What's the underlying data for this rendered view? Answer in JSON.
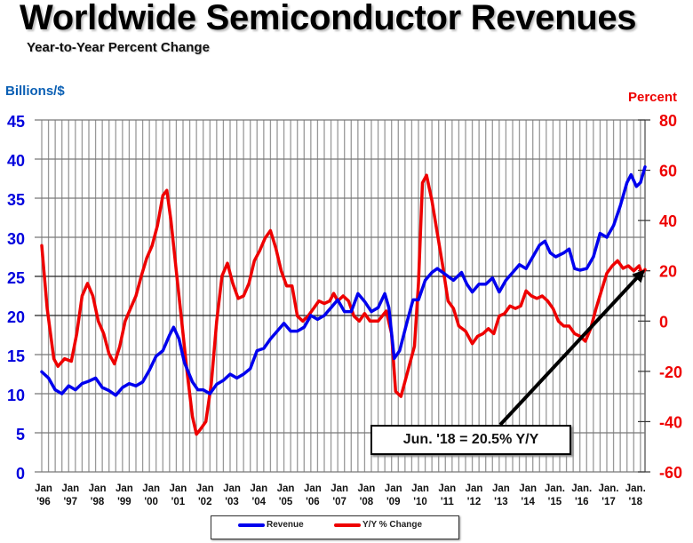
{
  "chart_data": {
    "type": "line",
    "title": "Worldwide Semiconductor Revenues",
    "subtitle": "Year-to-Year Percent Change",
    "ylabel_left": "Billions/$",
    "ylabel_right": "Percent",
    "ylim_left": [
      0,
      45
    ],
    "ylim_right": [
      -60,
      80
    ],
    "yticks_left": [
      "45",
      "40",
      "35",
      "30",
      "25",
      "20",
      "15",
      "10",
      "5",
      "0"
    ],
    "yticks_right": [
      "80",
      "60",
      "40",
      "20",
      "0",
      "-20",
      "-40",
      "-60"
    ],
    "xlim": [
      1996.0,
      2018.42
    ],
    "xticks": [
      {
        "l1": "Jan",
        "l2": "'96"
      },
      {
        "l1": "Jan",
        "l2": "'97"
      },
      {
        "l1": "Jan",
        "l2": "'98"
      },
      {
        "l1": "Jan",
        "l2": "'99"
      },
      {
        "l1": "Jan",
        "l2": "'00"
      },
      {
        "l1": "Jan",
        "l2": "'01"
      },
      {
        "l1": "Jan",
        "l2": "'02"
      },
      {
        "l1": "Jan",
        "l2": "'03"
      },
      {
        "l1": "Jan",
        "l2": "'04"
      },
      {
        "l1": "Jan",
        "l2": "'05"
      },
      {
        "l1": "Jan",
        "l2": "'06"
      },
      {
        "l1": "Jan",
        "l2": "'07"
      },
      {
        "l1": "Jan",
        "l2": "'08"
      },
      {
        "l1": "Jan",
        "l2": "'09"
      },
      {
        "l1": "Jan",
        "l2": "'10"
      },
      {
        "l1": "Jan",
        "l2": "'11"
      },
      {
        "l1": "Jan",
        "l2": "'12"
      },
      {
        "l1": "Jan",
        "l2": "'13"
      },
      {
        "l1": "Jan",
        "l2": "'14"
      },
      {
        "l1": "Jan.",
        "l2": "'15"
      },
      {
        "l1": "Jan.",
        "l2": "'16"
      },
      {
        "l1": "Jan.",
        "l2": "'17"
      },
      {
        "l1": "Jan.",
        "l2": "'18"
      }
    ],
    "grid": true,
    "legend_position": "bottom",
    "series": [
      {
        "name": "Revenue",
        "axis": "left",
        "color": "#0000ee",
        "points": [
          [
            1996.0,
            12.8
          ],
          [
            1996.25,
            12.0
          ],
          [
            1996.5,
            10.5
          ],
          [
            1996.75,
            10.0
          ],
          [
            1997.0,
            11.0
          ],
          [
            1997.25,
            10.5
          ],
          [
            1997.5,
            11.3
          ],
          [
            1997.75,
            11.6
          ],
          [
            1998.0,
            12.0
          ],
          [
            1998.25,
            10.8
          ],
          [
            1998.5,
            10.4
          ],
          [
            1998.75,
            9.8
          ],
          [
            1999.0,
            10.8
          ],
          [
            1999.25,
            11.3
          ],
          [
            1999.5,
            11.0
          ],
          [
            1999.75,
            11.5
          ],
          [
            2000.0,
            13.0
          ],
          [
            2000.25,
            14.8
          ],
          [
            2000.5,
            15.5
          ],
          [
            2000.75,
            17.5
          ],
          [
            2000.9,
            18.5
          ],
          [
            2001.1,
            17.0
          ],
          [
            2001.3,
            14.0
          ],
          [
            2001.6,
            11.5
          ],
          [
            2001.8,
            10.5
          ],
          [
            2002.0,
            10.5
          ],
          [
            2002.25,
            10.0
          ],
          [
            2002.5,
            11.2
          ],
          [
            2002.75,
            11.7
          ],
          [
            2003.0,
            12.5
          ],
          [
            2003.25,
            12.0
          ],
          [
            2003.5,
            12.5
          ],
          [
            2003.75,
            13.2
          ],
          [
            2004.0,
            15.5
          ],
          [
            2004.25,
            15.8
          ],
          [
            2004.5,
            17.0
          ],
          [
            2004.75,
            18.0
          ],
          [
            2005.0,
            19.0
          ],
          [
            2005.25,
            18.0
          ],
          [
            2005.5,
            18.0
          ],
          [
            2005.75,
            18.5
          ],
          [
            2006.0,
            20.0
          ],
          [
            2006.25,
            19.5
          ],
          [
            2006.5,
            20.0
          ],
          [
            2006.75,
            21.0
          ],
          [
            2007.0,
            22.0
          ],
          [
            2007.25,
            20.5
          ],
          [
            2007.5,
            20.5
          ],
          [
            2007.75,
            22.8
          ],
          [
            2008.0,
            21.8
          ],
          [
            2008.25,
            20.5
          ],
          [
            2008.5,
            21.0
          ],
          [
            2008.75,
            22.8
          ],
          [
            2008.9,
            21.0
          ],
          [
            2009.1,
            14.5
          ],
          [
            2009.3,
            15.5
          ],
          [
            2009.6,
            19.5
          ],
          [
            2009.8,
            22.0
          ],
          [
            2010.0,
            22.0
          ],
          [
            2010.25,
            24.5
          ],
          [
            2010.5,
            25.5
          ],
          [
            2010.7,
            26.0
          ],
          [
            2010.9,
            25.5
          ],
          [
            2011.1,
            25.0
          ],
          [
            2011.3,
            24.5
          ],
          [
            2011.6,
            25.5
          ],
          [
            2011.8,
            24.0
          ],
          [
            2012.0,
            23.0
          ],
          [
            2012.25,
            24.0
          ],
          [
            2012.5,
            24.0
          ],
          [
            2012.75,
            24.8
          ],
          [
            2013.0,
            23.0
          ],
          [
            2013.25,
            24.5
          ],
          [
            2013.5,
            25.5
          ],
          [
            2013.75,
            26.5
          ],
          [
            2014.0,
            26.0
          ],
          [
            2014.25,
            27.5
          ],
          [
            2014.5,
            29.0
          ],
          [
            2014.7,
            29.5
          ],
          [
            2014.9,
            28.0
          ],
          [
            2015.1,
            27.5
          ],
          [
            2015.4,
            28.0
          ],
          [
            2015.6,
            28.5
          ],
          [
            2015.8,
            26.0
          ],
          [
            2016.0,
            25.8
          ],
          [
            2016.25,
            26.0
          ],
          [
            2016.5,
            27.5
          ],
          [
            2016.75,
            30.5
          ],
          [
            2017.0,
            30.0
          ],
          [
            2017.25,
            31.5
          ],
          [
            2017.5,
            34.0
          ],
          [
            2017.75,
            37.0
          ],
          [
            2017.9,
            38.0
          ],
          [
            2018.1,
            36.5
          ],
          [
            2018.25,
            37.0
          ],
          [
            2018.42,
            39.0
          ]
        ]
      },
      {
        "name": "Y/Y % Change",
        "axis": "right",
        "color": "#ee0000",
        "points": [
          [
            1996.0,
            30
          ],
          [
            1996.2,
            5
          ],
          [
            1996.45,
            -15
          ],
          [
            1996.6,
            -18
          ],
          [
            1996.85,
            -15
          ],
          [
            1997.1,
            -16
          ],
          [
            1997.3,
            -5
          ],
          [
            1997.5,
            10
          ],
          [
            1997.7,
            15
          ],
          [
            1997.9,
            10
          ],
          [
            1998.1,
            0
          ],
          [
            1998.3,
            -5
          ],
          [
            1998.5,
            -13
          ],
          [
            1998.7,
            -17
          ],
          [
            1998.9,
            -10
          ],
          [
            1999.1,
            0
          ],
          [
            1999.3,
            5
          ],
          [
            1999.5,
            10
          ],
          [
            1999.7,
            18
          ],
          [
            1999.9,
            25
          ],
          [
            2000.1,
            30
          ],
          [
            2000.3,
            38
          ],
          [
            2000.5,
            50
          ],
          [
            2000.65,
            52
          ],
          [
            2000.8,
            40
          ],
          [
            2001.0,
            20
          ],
          [
            2001.2,
            0
          ],
          [
            2001.4,
            -20
          ],
          [
            2001.6,
            -38
          ],
          [
            2001.75,
            -45
          ],
          [
            2001.9,
            -43
          ],
          [
            2002.1,
            -40
          ],
          [
            2002.3,
            -25
          ],
          [
            2002.5,
            0
          ],
          [
            2002.7,
            18
          ],
          [
            2002.9,
            23
          ],
          [
            2003.1,
            15
          ],
          [
            2003.3,
            9
          ],
          [
            2003.5,
            10
          ],
          [
            2003.7,
            15
          ],
          [
            2003.9,
            24
          ],
          [
            2004.1,
            28
          ],
          [
            2004.3,
            33
          ],
          [
            2004.5,
            36
          ],
          [
            2004.7,
            29
          ],
          [
            2004.9,
            20
          ],
          [
            2005.1,
            14
          ],
          [
            2005.3,
            14
          ],
          [
            2005.5,
            2
          ],
          [
            2005.7,
            0
          ],
          [
            2005.9,
            2
          ],
          [
            2006.1,
            5
          ],
          [
            2006.3,
            8
          ],
          [
            2006.5,
            7
          ],
          [
            2006.7,
            8
          ],
          [
            2006.85,
            11
          ],
          [
            2007.0,
            8
          ],
          [
            2007.2,
            10
          ],
          [
            2007.4,
            8
          ],
          [
            2007.6,
            2
          ],
          [
            2007.8,
            0
          ],
          [
            2008.0,
            3
          ],
          [
            2008.2,
            0
          ],
          [
            2008.5,
            0
          ],
          [
            2008.8,
            4
          ],
          [
            2009.0,
            -5
          ],
          [
            2009.15,
            -28
          ],
          [
            2009.35,
            -30
          ],
          [
            2009.6,
            -20
          ],
          [
            2009.85,
            -10
          ],
          [
            2010.0,
            15
          ],
          [
            2010.15,
            55
          ],
          [
            2010.3,
            58
          ],
          [
            2010.5,
            48
          ],
          [
            2010.7,
            35
          ],
          [
            2010.9,
            22
          ],
          [
            2011.1,
            8
          ],
          [
            2011.3,
            5
          ],
          [
            2011.5,
            -2
          ],
          [
            2011.75,
            -4
          ],
          [
            2012.0,
            -9
          ],
          [
            2012.2,
            -6
          ],
          [
            2012.4,
            -5
          ],
          [
            2012.6,
            -3
          ],
          [
            2012.8,
            -5
          ],
          [
            2013.0,
            2
          ],
          [
            2013.2,
            3
          ],
          [
            2013.4,
            6
          ],
          [
            2013.6,
            5
          ],
          [
            2013.8,
            6
          ],
          [
            2014.0,
            12
          ],
          [
            2014.2,
            10
          ],
          [
            2014.4,
            9
          ],
          [
            2014.6,
            10
          ],
          [
            2014.8,
            8
          ],
          [
            2015.0,
            5
          ],
          [
            2015.2,
            0
          ],
          [
            2015.4,
            -2
          ],
          [
            2015.6,
            -2
          ],
          [
            2015.8,
            -5
          ],
          [
            2016.0,
            -6
          ],
          [
            2016.2,
            -8
          ],
          [
            2016.4,
            -3
          ],
          [
            2016.6,
            5
          ],
          [
            2016.8,
            12
          ],
          [
            2017.0,
            19
          ],
          [
            2017.2,
            22
          ],
          [
            2017.4,
            24
          ],
          [
            2017.6,
            21
          ],
          [
            2017.8,
            22
          ],
          [
            2018.0,
            20
          ],
          [
            2018.2,
            22
          ],
          [
            2018.3,
            19
          ],
          [
            2018.42,
            20.5
          ]
        ]
      }
    ],
    "annotation": {
      "text": "Jun. '18 = 20.5% Y/Y",
      "points_to": [
        2018.42,
        20.5
      ]
    }
  }
}
